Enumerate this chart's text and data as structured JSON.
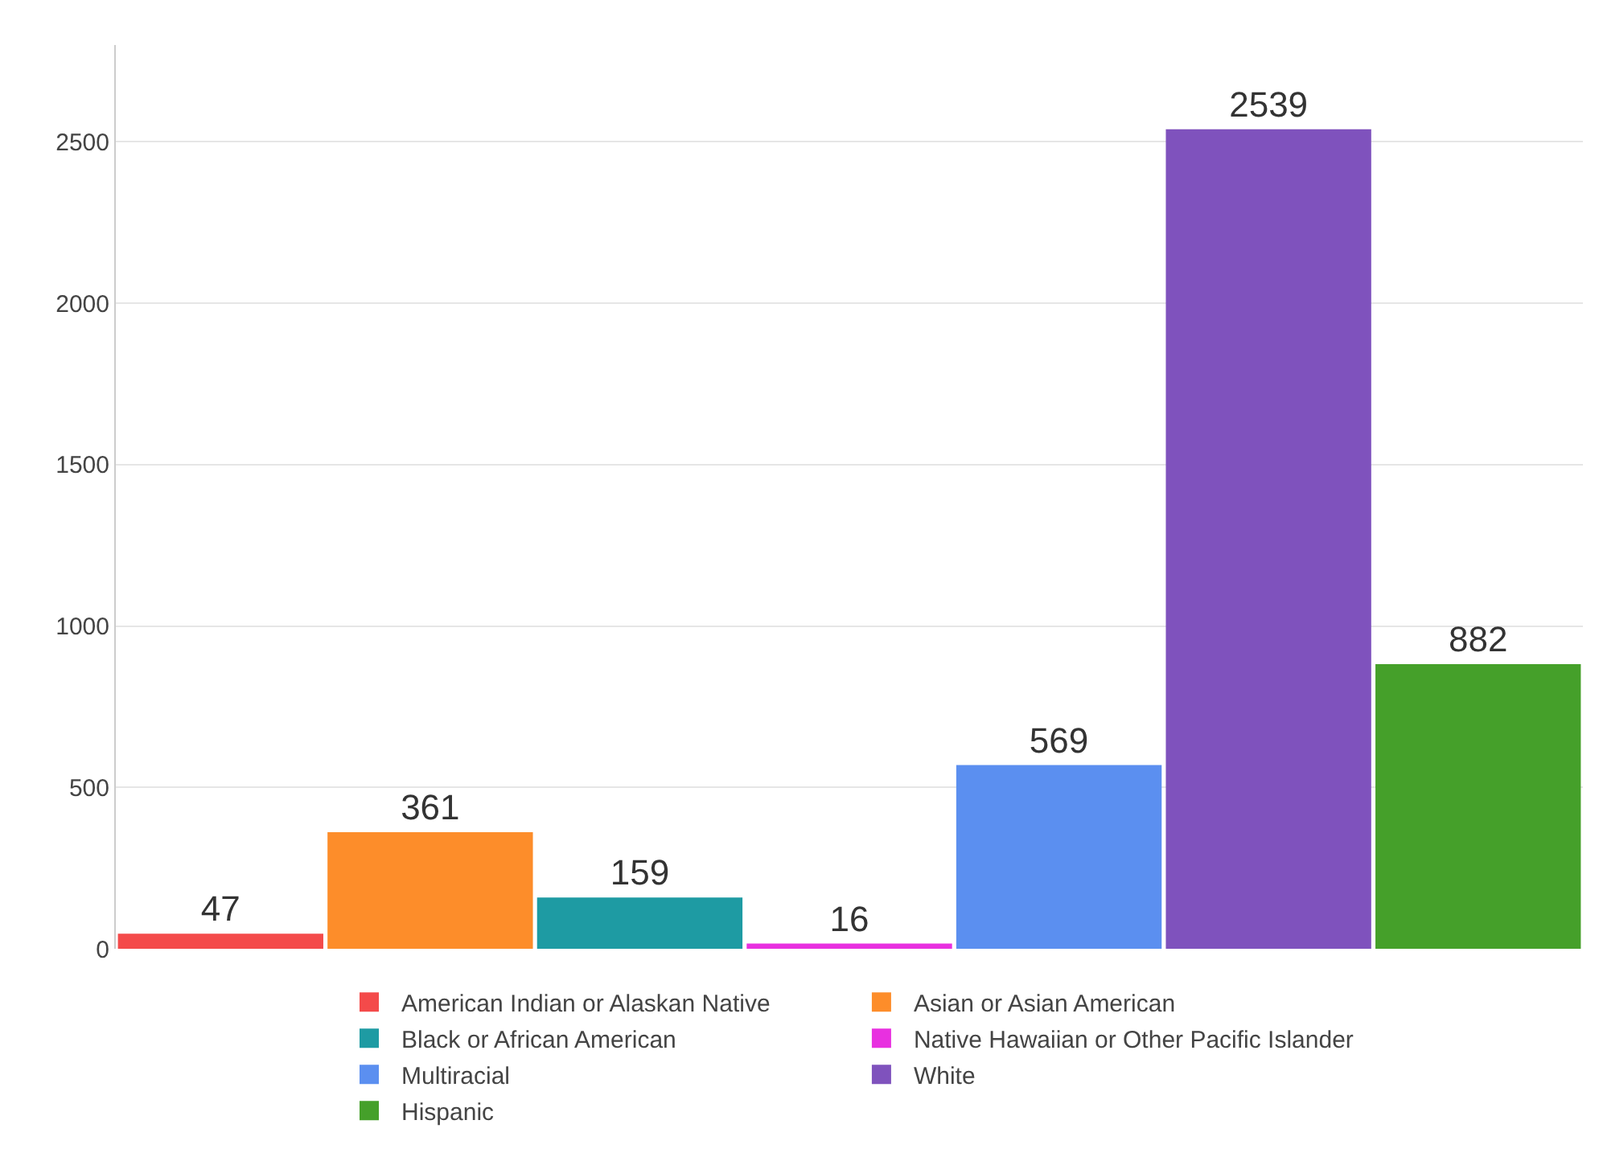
{
  "chart_data": {
    "type": "bar",
    "categories": [
      null,
      null,
      null,
      null,
      null,
      null,
      null
    ],
    "series": [
      {
        "name": "American Indian or Alaskan Native",
        "color": "#f44a4a",
        "values": [
          47,
          null,
          null,
          null,
          null,
          null,
          null
        ]
      },
      {
        "name": "Asian or Asian American",
        "color": "#fd8d2a",
        "values": [
          null,
          361,
          null,
          null,
          null,
          null,
          null
        ]
      },
      {
        "name": "Black or African American",
        "color": "#1e9ba3",
        "values": [
          null,
          null,
          159,
          null,
          null,
          null,
          null
        ]
      },
      {
        "name": "Native Hawaiian or Other Pacific Islander",
        "color": "#e830e0",
        "values": [
          null,
          null,
          null,
          16,
          null,
          null,
          null
        ]
      },
      {
        "name": "Multiracial",
        "color": "#5b8ff0",
        "values": [
          null,
          null,
          null,
          null,
          569,
          null,
          null
        ]
      },
      {
        "name": "White",
        "color": "#7f52bd",
        "values": [
          null,
          null,
          null,
          null,
          null,
          2539,
          null
        ]
      },
      {
        "name": "Hispanic",
        "color": "#45a02a",
        "values": [
          null,
          null,
          null,
          null,
          null,
          null,
          882
        ]
      }
    ],
    "ylim": [
      0,
      2800
    ],
    "yticks": [
      0,
      500,
      1000,
      1500,
      2000,
      2500
    ],
    "grid": "y",
    "legend": "bottom",
    "data_labels": true,
    "tick_labels": "y"
  }
}
